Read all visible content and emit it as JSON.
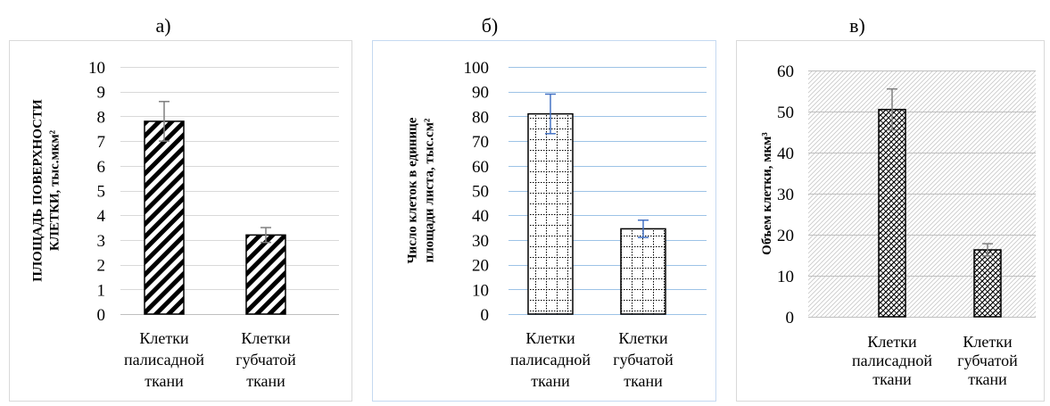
{
  "chart_data": [
    {
      "panel_label": "а)",
      "type": "bar",
      "categories": [
        [
          "Клетки",
          "палисадной",
          "ткани"
        ],
        [
          "Клетки",
          "губчатой",
          "ткани"
        ]
      ],
      "values": [
        7.8,
        3.2
      ],
      "error": [
        0.8,
        0.3
      ],
      "ylabel_lines": [
        "ПЛОЩАДЬ ПОВЕРХНОСТИ",
        "КЛЕТКИ, тыс.мкм²"
      ],
      "ylim": [
        0,
        10
      ],
      "yticks": [
        0,
        1,
        2,
        3,
        4,
        5,
        6,
        7,
        8,
        9,
        10
      ],
      "grid": true,
      "pattern": "diagonal-stripes",
      "error_color": "#7f7f7f"
    },
    {
      "panel_label": "б)",
      "type": "bar",
      "categories": [
        [
          "Клетки",
          "палисадной",
          "ткани"
        ],
        [
          "Клетки",
          "губчатой",
          "ткани"
        ]
      ],
      "values": [
        81,
        34.5
      ],
      "error": [
        8,
        3.5
      ],
      "ylabel_lines": [
        "Число клеток в единице",
        "площади листа, тыс.см²"
      ],
      "ylim": [
        0,
        100
      ],
      "yticks": [
        0,
        10,
        20,
        30,
        40,
        50,
        60,
        70,
        80,
        90,
        100
      ],
      "grid": true,
      "pattern": "dotted-grid",
      "error_color": "#4472c4"
    },
    {
      "panel_label": "в)",
      "type": "bar",
      "categories": [
        [
          "Клетки",
          "палисадной",
          "ткани"
        ],
        [
          "Клетки",
          "губчатой",
          "ткани"
        ]
      ],
      "values": [
        50.5,
        16.3
      ],
      "error": [
        5,
        1.5
      ],
      "ylabel_lines": [
        "Объем клетки, мкм³"
      ],
      "ylim": [
        0,
        60
      ],
      "yticks": [
        0,
        10,
        20,
        30,
        40,
        50,
        60
      ],
      "grid": true,
      "pattern": "fine-crosshatch",
      "error_color": "#7f7f7f"
    }
  ]
}
